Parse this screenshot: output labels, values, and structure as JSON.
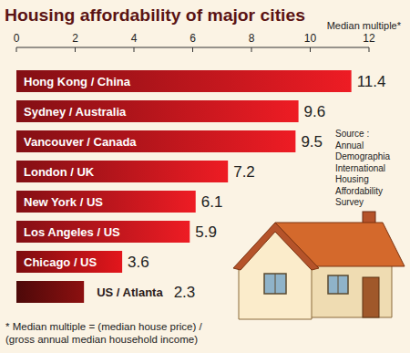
{
  "chart_data": {
    "type": "bar",
    "orientation": "horizontal",
    "title": "Housing affordability of major cities",
    "x_label": "Median multiple*",
    "categories": [
      "Hong Kong / China",
      "Sydney / Australia",
      "Vancouver / Canada",
      "London / UK",
      "New York / US",
      "Los Angeles / US",
      "Chicago / US",
      "US / Atlanta"
    ],
    "values": [
      11.4,
      9.6,
      9.5,
      7.2,
      6.1,
      5.9,
      3.6,
      2.3
    ],
    "colors": [
      "#ee1c24",
      "#ee1c24",
      "#ee1c24",
      "#ee1c24",
      "#ee1c24",
      "#ee1c24",
      "#e3161c",
      "#8c1010"
    ],
    "xlim": [
      0,
      12
    ],
    "xticks": [
      0,
      2,
      4,
      6,
      8,
      10,
      12
    ],
    "grid": false,
    "data_labels": true,
    "source": [
      "Source :",
      "Annual",
      "Demographia",
      "International",
      "Housing",
      "Affordability",
      "Survey"
    ],
    "footnote": [
      "* Median multiple = (median house price) /",
      "(gross annual median household income)"
    ]
  }
}
